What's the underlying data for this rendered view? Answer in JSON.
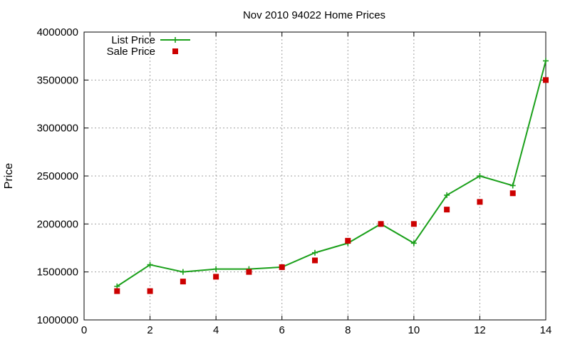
{
  "chart_data": {
    "type": "line",
    "title": "Nov 2010 94022 Home Prices",
    "xlabel": "",
    "ylabel": "Price",
    "xlim": [
      0,
      14
    ],
    "ylim": [
      1000000,
      4000000
    ],
    "xticks": [
      0,
      2,
      4,
      6,
      8,
      10,
      12,
      14
    ],
    "xtick_labels": [
      "0",
      "2",
      "4",
      "6",
      "8",
      "10",
      "12",
      "14"
    ],
    "yticks": [
      1000000,
      1500000,
      2000000,
      2500000,
      3000000,
      3500000,
      4000000
    ],
    "ytick_labels": [
      "1000000",
      "1500000",
      "2000000",
      "2500000",
      "3000000",
      "3500000",
      "4000000"
    ],
    "grid": true,
    "legend_position": "top-left",
    "series": [
      {
        "name": "List Price",
        "style": "line-with-plus-markers",
        "color": "#1aa01a",
        "x": [
          1,
          2,
          3,
          4,
          5,
          6,
          7,
          8,
          9,
          10,
          11,
          12,
          13,
          14
        ],
        "y": [
          1350000,
          1575000,
          1500000,
          1530000,
          1530000,
          1550000,
          1700000,
          1800000,
          2000000,
          1800000,
          2300000,
          2500000,
          2400000,
          3700000
        ]
      },
      {
        "name": "Sale Price",
        "style": "square-markers",
        "color": "#cc0000",
        "x": [
          1,
          2,
          3,
          4,
          5,
          6,
          7,
          8,
          9,
          10,
          11,
          12,
          13,
          14
        ],
        "y": [
          1300000,
          1300000,
          1400000,
          1450000,
          1500000,
          1550000,
          1620000,
          1825000,
          2000000,
          2000000,
          2150000,
          2230000,
          2320000,
          3500000
        ]
      }
    ]
  }
}
